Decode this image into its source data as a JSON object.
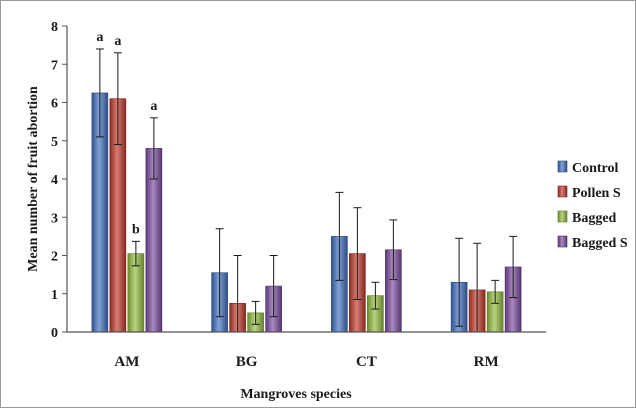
{
  "chart_data": {
    "type": "bar",
    "title": "",
    "xlabel": "Mangroves species",
    "ylabel": "Mean number of fruit abortion",
    "ylim": [
      0,
      8
    ],
    "yticks": [
      0,
      1,
      2,
      3,
      4,
      5,
      6,
      7,
      8
    ],
    "categories": [
      "AM",
      "BG",
      "CT",
      "RM"
    ],
    "legend_position": "right",
    "error_bars": "upper and lower whiskers",
    "series": [
      {
        "name": "Control",
        "color": "#3f6fbf",
        "values": [
          6.25,
          1.55,
          2.5,
          1.3
        ],
        "errors": [
          1.15,
          1.15,
          1.15,
          1.15
        ]
      },
      {
        "name": "Pollen S",
        "color": "#c0392b",
        "values": [
          6.1,
          0.75,
          2.05,
          1.1
        ],
        "errors": [
          1.2,
          1.25,
          1.2,
          1.22
        ]
      },
      {
        "name": "Bagged",
        "color": "#93bb3f",
        "values": [
          2.05,
          0.5,
          0.95,
          1.05
        ],
        "errors": [
          0.32,
          0.3,
          0.35,
          0.3
        ]
      },
      {
        "name": "Bagged S",
        "color": "#7a4aa0",
        "values": [
          4.8,
          1.2,
          2.15,
          1.7
        ],
        "errors": [
          0.8,
          0.8,
          0.78,
          0.8
        ]
      }
    ],
    "annotations": [
      {
        "text": "a",
        "category": "AM",
        "series": "Control"
      },
      {
        "text": "a",
        "category": "AM",
        "series": "Pollen S"
      },
      {
        "text": "b",
        "category": "AM",
        "series": "Bagged"
      },
      {
        "text": "a",
        "category": "AM",
        "series": "Bagged S"
      }
    ]
  }
}
